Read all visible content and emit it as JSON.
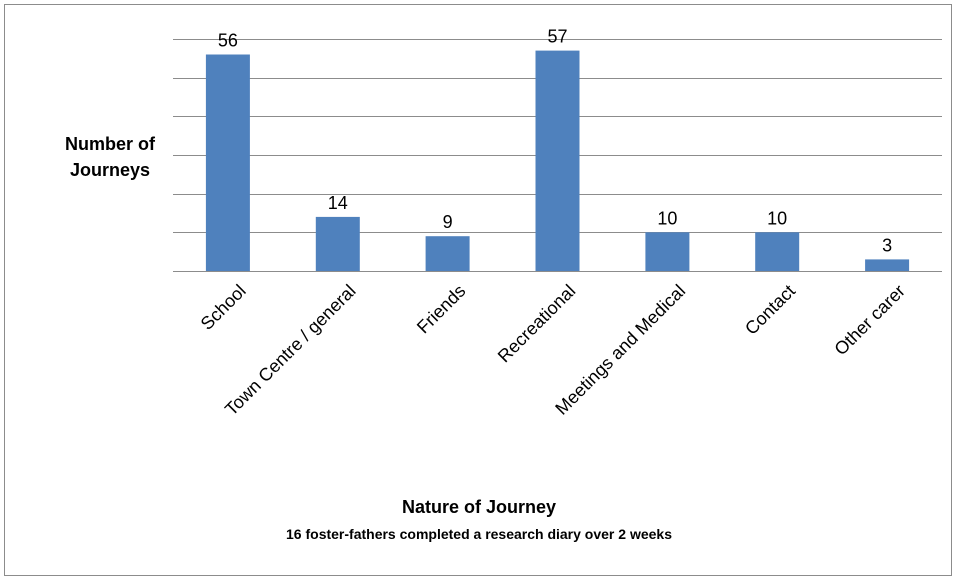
{
  "chart_data": {
    "type": "bar",
    "categories": [
      "School",
      "Town Centre / general",
      "Friends",
      "Recreational",
      "Meetings and Medical",
      "Contact",
      "Other carer"
    ],
    "values": [
      56,
      14,
      9,
      57,
      10,
      10,
      3
    ],
    "data_labels": [
      "56",
      "14",
      "9",
      "57",
      "10",
      "10",
      "3"
    ],
    "ylabel_lines": [
      "Number of",
      "Journeys"
    ],
    "xlabel": "Nature of Journey",
    "subtitle": "16 foster-fathers completed a research diary over 2 weeks",
    "ylim": [
      0,
      60
    ],
    "grid": true,
    "bar_color": "#4f81bd",
    "grid_color": "#8c8c8c"
  }
}
